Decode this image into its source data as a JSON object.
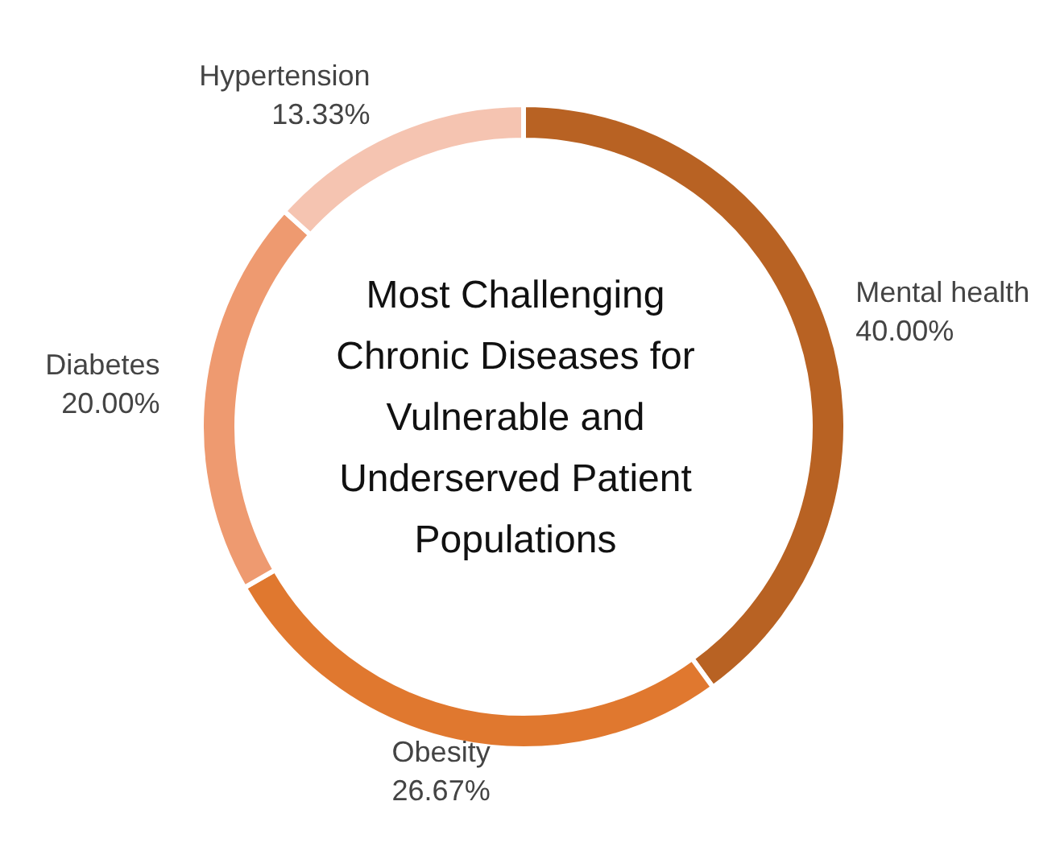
{
  "chart_data": {
    "type": "donut",
    "title": "Most Challenging Chronic Diseases for Vulnerable and Underserved Patient Populations",
    "categories": [
      "Mental health",
      "Obesity",
      "Diabetes",
      "Hypertension"
    ],
    "values": [
      40,
      26.67,
      20,
      13.33
    ],
    "value_labels": [
      "40.00%",
      "26.67%",
      "20.00%",
      "13.33%"
    ],
    "colors": [
      "#b86223",
      "#e0782f",
      "#ee9a70",
      "#f5c4b1"
    ],
    "legend": false
  }
}
